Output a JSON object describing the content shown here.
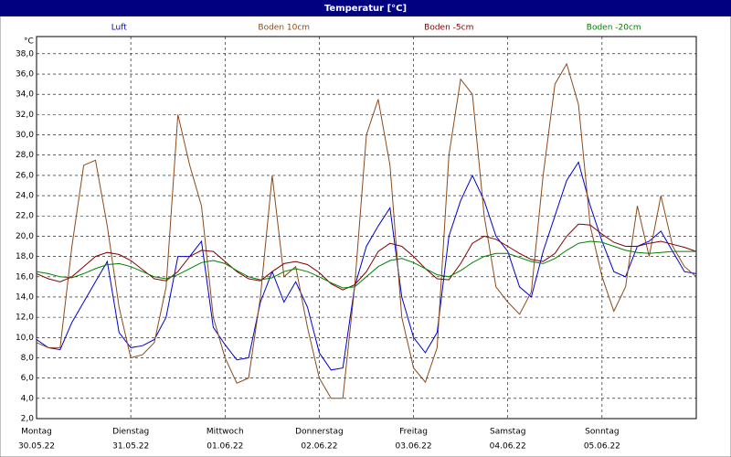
{
  "chart_data": {
    "type": "line",
    "title": "Temperatur [°C]",
    "y_label": "°C",
    "x": [
      0,
      3,
      6,
      9,
      12,
      15,
      18,
      21,
      24,
      27,
      30,
      33,
      36,
      39,
      42,
      45,
      48,
      51,
      54,
      57,
      60,
      63,
      66,
      69,
      72,
      75,
      78,
      81,
      84,
      87,
      90,
      93,
      96,
      99,
      102,
      105,
      108,
      111,
      114,
      117,
      120,
      123,
      126,
      129,
      132,
      135,
      138,
      141,
      144,
      147,
      150,
      153,
      156,
      159,
      162,
      165,
      168
    ],
    "xlim": [
      0,
      168
    ],
    "xticks": [
      {
        "value": 0,
        "label": "Montag",
        "date": "30.05.22"
      },
      {
        "value": 24,
        "label": "Dienstag",
        "date": "31.05.22"
      },
      {
        "value": 48,
        "label": "Mittwoch",
        "date": "01.06.22"
      },
      {
        "value": 72,
        "label": "Donnerstag",
        "date": "02.06.22"
      },
      {
        "value": 96,
        "label": "Freitag",
        "date": "03.06.22"
      },
      {
        "value": 120,
        "label": "Samstag",
        "date": "04.06.22"
      },
      {
        "value": 144,
        "label": "Sonntag",
        "date": "05.06.22"
      }
    ],
    "ylim": [
      2,
      39.7
    ],
    "yticks": [
      {
        "value": 2,
        "label": "2,0"
      },
      {
        "value": 4,
        "label": "4,0"
      },
      {
        "value": 6,
        "label": "6,0"
      },
      {
        "value": 8,
        "label": "8,0"
      },
      {
        "value": 10,
        "label": "10,0"
      },
      {
        "value": 12,
        "label": "12,0"
      },
      {
        "value": 14,
        "label": "14,0"
      },
      {
        "value": 16,
        "label": "16,0"
      },
      {
        "value": 18,
        "label": "18,0"
      },
      {
        "value": 20,
        "label": "20,0"
      },
      {
        "value": 22,
        "label": "22,0"
      },
      {
        "value": 24,
        "label": "24,0"
      },
      {
        "value": 26,
        "label": "26,0"
      },
      {
        "value": 28,
        "label": "28,0"
      },
      {
        "value": 30,
        "label": "30,0"
      },
      {
        "value": 32,
        "label": "32,0"
      },
      {
        "value": 34,
        "label": "34,0"
      },
      {
        "value": 36,
        "label": "36,0"
      },
      {
        "value": 38,
        "label": "38,0"
      }
    ],
    "grid": true,
    "series": [
      {
        "name": "Luft",
        "color": "#0000cc",
        "values": [
          9.8,
          9.0,
          8.8,
          11.5,
          13.5,
          15.5,
          17.5,
          10.5,
          9.0,
          9.2,
          9.8,
          12,
          18,
          18,
          19.5,
          11,
          9.3,
          7.8,
          8,
          13.5,
          16.5,
          13.5,
          15.5,
          13,
          8.5,
          6.8,
          7,
          15,
          19,
          21,
          22.8,
          14,
          10,
          8.5,
          10.5,
          20,
          23.5,
          26,
          23.5,
          20,
          18.5,
          15,
          14,
          18.5,
          22,
          25.5,
          27.3,
          23,
          19.5,
          16.5,
          16,
          19,
          19.5,
          20.5,
          18.5,
          16.5,
          16.3
        ]
      },
      {
        "name": "Boden 10cm",
        "color": "#8b4a1c",
        "values": [
          9.5,
          9,
          9,
          19,
          27,
          27.5,
          21,
          13,
          8,
          8.3,
          9.5,
          15,
          32,
          27,
          23,
          12,
          8,
          5.5,
          6,
          14,
          26,
          16,
          17,
          11,
          6,
          4,
          4,
          15,
          30,
          33.5,
          27,
          12,
          7,
          5.6,
          9,
          28,
          35.5,
          34,
          22,
          15,
          13.5,
          12.3,
          14.5,
          26,
          35,
          37,
          33,
          21,
          16,
          12.6,
          15,
          23,
          18,
          24,
          19,
          17,
          16
        ]
      },
      {
        "name": "Boden -5cm",
        "color": "#800000",
        "values": [
          16.3,
          15.8,
          15.5,
          16,
          17,
          18,
          18.4,
          18.2,
          17.6,
          16.7,
          15.8,
          15.6,
          16.5,
          18,
          18.6,
          18.5,
          17.5,
          16.5,
          15.8,
          15.6,
          16.5,
          17.3,
          17.5,
          17.2,
          16.4,
          15.3,
          14.7,
          15.2,
          16.5,
          18.5,
          19.3,
          19,
          18,
          16.8,
          15.8,
          15.7,
          17.3,
          19.3,
          20,
          19.7,
          19,
          18.3,
          17.7,
          17.5,
          18.3,
          20,
          21.2,
          21.1,
          20.2,
          19.4,
          19,
          19,
          19.3,
          19.5,
          19.2,
          18.9,
          18.5
        ]
      },
      {
        "name": "Boden -20cm",
        "color": "#008000",
        "values": [
          16.5,
          16.3,
          16,
          15.9,
          16.3,
          16.8,
          17.2,
          17.3,
          17,
          16.5,
          16,
          15.8,
          16.2,
          16.8,
          17.4,
          17.6,
          17.3,
          16.6,
          16,
          15.7,
          15.9,
          16.5,
          16.8,
          16.5,
          16,
          15.4,
          14.9,
          15,
          16,
          17,
          17.6,
          17.8,
          17.4,
          16.8,
          16.2,
          16,
          16.6,
          17.4,
          18,
          18.3,
          18.3,
          17.9,
          17.5,
          17.3,
          17.8,
          18.6,
          19.3,
          19.5,
          19.4,
          19,
          18.6,
          18.4,
          18.3,
          18.4,
          18.5,
          18.5,
          18.5
        ]
      }
    ]
  }
}
